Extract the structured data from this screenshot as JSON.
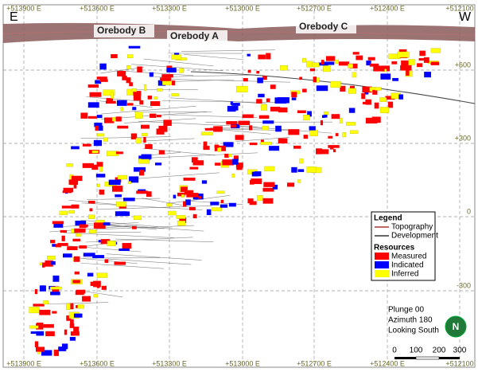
{
  "section": {
    "east_label": "E",
    "west_label": "W",
    "top_eastings": [
      "+513900 E",
      "+513600 E",
      "+513300 E",
      "+513000 E",
      "+512700 E",
      "+512400 E",
      "+512100"
    ],
    "bottom_eastings": [
      "+513900 E",
      "+513600 E",
      "+513300 E",
      "+513000 E",
      "+512700 E",
      "+512400 E",
      "+512100"
    ],
    "elevations": [
      "+600",
      "+300",
      "0",
      "-300"
    ],
    "orebodies": [
      "Orebody B",
      "Orebody A",
      "Orebody C"
    ]
  },
  "legend": {
    "title": "Legend",
    "lines": [
      "Topography",
      "Development"
    ],
    "resources_title": "Resources",
    "resources": [
      "Measured",
      "Indicated",
      "Inferred"
    ]
  },
  "view": {
    "lines": [
      "Plunge 00",
      "Azimuth 180",
      "Looking South"
    ]
  },
  "scale": {
    "labels": [
      "0",
      "100",
      "200",
      "300"
    ]
  },
  "north": "N"
}
